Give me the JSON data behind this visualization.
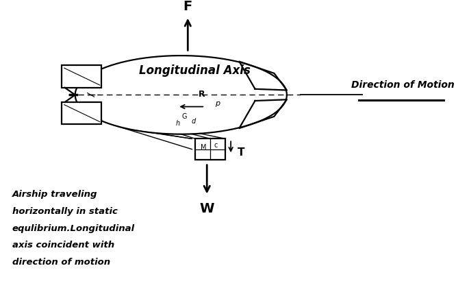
{
  "bg_color": "#ffffff",
  "line_color": "#000000",
  "caption_lines": [
    "Airship traveling",
    "horizontally in static",
    "equlibrium.Longitudinal",
    "axis coincident with",
    "direction of motion"
  ]
}
